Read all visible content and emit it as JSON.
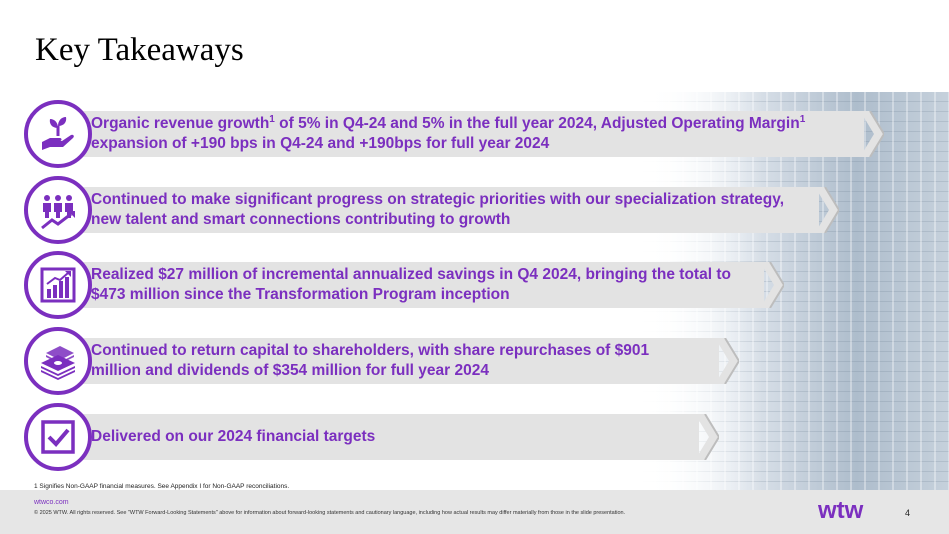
{
  "slide": {
    "title": "Key Takeaways",
    "page_number": "4"
  },
  "takeaways": [
    {
      "icon": "plant-in-hand-icon",
      "line1_a": "Organic revenue growth",
      "line1_sup1": "1",
      "line1_b": " of 5% in Q4-24 and 5% in the full year 2024, Adjusted Operating Margin",
      "line1_sup2": "1",
      "line2": "expansion of +190 bps in Q4-24 and +190bps for full year 2024"
    },
    {
      "icon": "people-growth-icon",
      "line1": "Continued to make significant progress on strategic priorities with our specialization strategy,",
      "line2": "new talent and smart connections contributing to growth"
    },
    {
      "icon": "bar-chart-growth-icon",
      "line1": "Realized $27 million of incremental annualized savings in Q4 2024, bringing the total to",
      "line2": "$473 million since the Transformation Program inception"
    },
    {
      "icon": "money-stack-icon",
      "line1": "Continued to return capital to shareholders, with share repurchases of $901",
      "line2": "million and dividends of $354 million for full year 2024"
    },
    {
      "icon": "checkbox-icon",
      "line1": "Delivered on our 2024 financial targets"
    }
  ],
  "footnote": "1 Signifies Non-GAAP financial measures. See Appendix I for Non-GAAP reconciliations.",
  "footer": {
    "website": "wtwco.com",
    "copyright": "© 2025 WTW. All rights reserved. See \"WTW Forward-Looking Statements\" above for information about forward-looking statements and cautionary language, including how actual results may differ materially from those in the slide presentation.",
    "logo_text": "wtw"
  },
  "colors": {
    "accent": "#7b2fbf",
    "band": "#e3e3e3",
    "footer_bg": "#e6e6e6"
  }
}
